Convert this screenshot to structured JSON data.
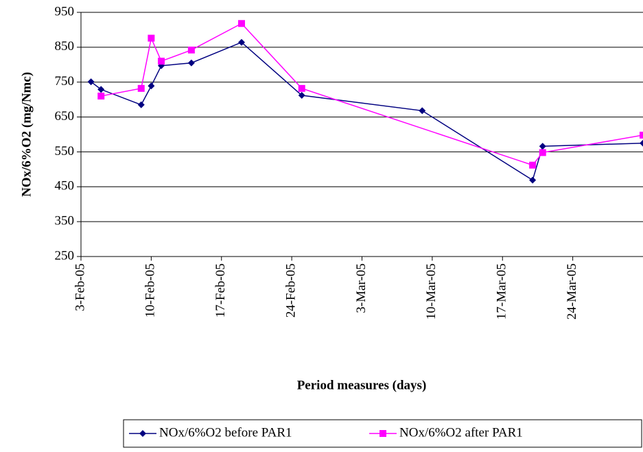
{
  "chart_data": {
    "type": "line",
    "x_label": "Period measures (days)",
    "y_label": "NOx/6%O2 (mg/Nmc)",
    "xlim": [
      "2005-02-03",
      "2005-03-31"
    ],
    "xticks": [
      {
        "value": "2005-02-03",
        "label": "3-Feb-05"
      },
      {
        "value": "2005-02-10",
        "label": "10-Feb-05"
      },
      {
        "value": "2005-02-17",
        "label": "17-Feb-05"
      },
      {
        "value": "2005-02-24",
        "label": "24-Feb-05"
      },
      {
        "value": "2005-03-03",
        "label": "3-Mar-05"
      },
      {
        "value": "2005-03-10",
        "label": "10-Mar-05"
      },
      {
        "value": "2005-03-17",
        "label": "17-Mar-05"
      },
      {
        "value": "2005-03-24",
        "label": "24-Mar-05"
      }
    ],
    "ylim": [
      250,
      950
    ],
    "yticks": [
      250,
      350,
      450,
      550,
      650,
      750,
      850,
      950
    ],
    "grid": true,
    "legend": "bottom",
    "series": [
      {
        "name": "NOx/6%O2 before PAR1",
        "color": "#000080",
        "marker": "diamond",
        "x": [
          "2005-02-04",
          "2005-02-05",
          "2005-02-09",
          "2005-02-10",
          "2005-02-11",
          "2005-02-14",
          "2005-02-19",
          "2005-02-25",
          "2005-03-09",
          "2005-03-20",
          "2005-03-21",
          "2005-03-31"
        ],
        "values": [
          751,
          729,
          685,
          739,
          797,
          805,
          864,
          712,
          668,
          469,
          566,
          575
        ]
      },
      {
        "name": "NOx/6%O2 after PAR1",
        "color": "#ff00ff",
        "marker": "square",
        "x": [
          "2005-02-05",
          "2005-02-09",
          "2005-02-10",
          "2005-02-11",
          "2005-02-14",
          "2005-02-19",
          "2005-02-25",
          "2005-03-20",
          "2005-03-21",
          "2005-03-31"
        ],
        "values": [
          710,
          732,
          876,
          810,
          842,
          918,
          732,
          512,
          548,
          598
        ]
      }
    ]
  }
}
